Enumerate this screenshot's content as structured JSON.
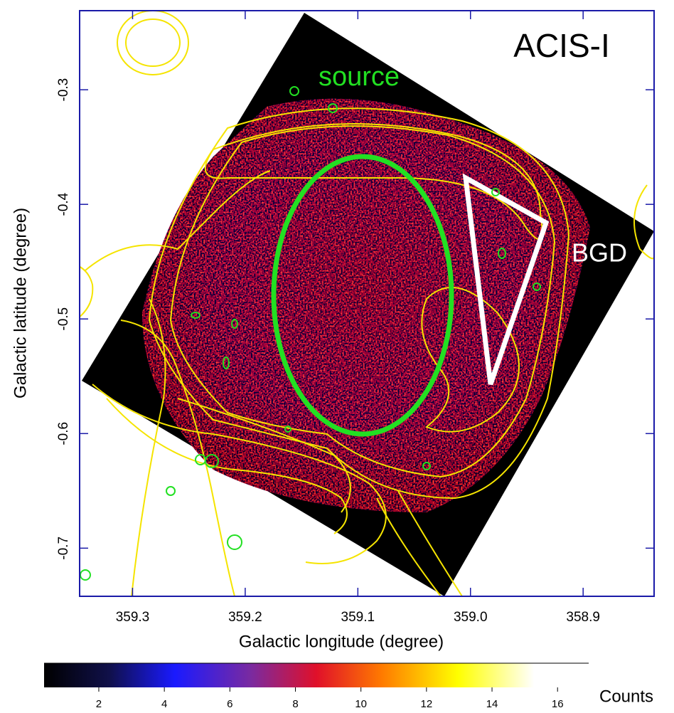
{
  "chart_data": {
    "type": "image",
    "xlabel": "Galactic longitude (degree)",
    "ylabel": "Galactic latitude (degree)",
    "xlim": [
      359.347,
      358.837
    ],
    "ylim": [
      -0.742,
      -0.231
    ],
    "xticks": [
      359.3,
      359.2,
      359.1,
      {
        "value": 359,
        "label": "359.0"
      },
      358.9
    ],
    "yticks": [
      -0.3,
      -0.4,
      -0.5,
      -0.6,
      -0.7
    ],
    "annotations": [
      "ACIS-I",
      "source",
      "BGD"
    ],
    "colorbar": {
      "label": "Counts",
      "lim": [
        0.33,
        16.95
      ],
      "ticks": [
        2,
        4,
        6,
        8,
        10,
        12,
        14,
        16
      ]
    }
  }
}
